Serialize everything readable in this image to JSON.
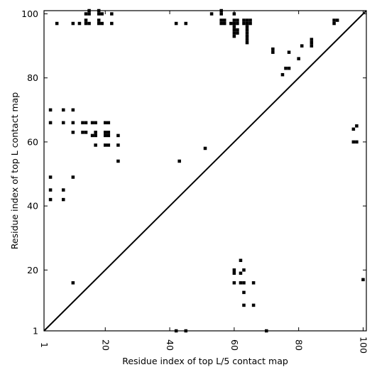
{
  "chart_data": {
    "type": "scatter",
    "xlabel": "Residue index of top L/5 contact map",
    "ylabel": "Residue index of top L contact map",
    "xlim": [
      1,
      101
    ],
    "ylim": [
      1,
      101
    ],
    "x_ticks": [
      1,
      20,
      40,
      60,
      80,
      100
    ],
    "y_ticks": [
      1,
      20,
      40,
      60,
      80,
      100
    ],
    "x_tick_labels": [
      "1",
      "20",
      "40",
      "60",
      "80",
      "100"
    ],
    "y_tick_labels": [
      "1",
      "20",
      "40",
      "60",
      "80",
      "100"
    ],
    "diagonal": true,
    "grid": false,
    "marker": "square",
    "marker_color": "#000000",
    "upper_series_name": "",
    "lower_series_name": "",
    "upper_points": [
      [
        5,
        97
      ],
      [
        10,
        97
      ],
      [
        12,
        97
      ],
      [
        14,
        97
      ],
      [
        15,
        97
      ],
      [
        18,
        97
      ],
      [
        19,
        97
      ],
      [
        22,
        97
      ],
      [
        42,
        97
      ],
      [
        45,
        97
      ],
      [
        14,
        98
      ],
      [
        18,
        98
      ],
      [
        14,
        100
      ],
      [
        15,
        100
      ],
      [
        15,
        101
      ],
      [
        18,
        101
      ],
      [
        18,
        100
      ],
      [
        19,
        100
      ],
      [
        22,
        100
      ],
      [
        53,
        100
      ],
      [
        56,
        100
      ],
      [
        56,
        101
      ],
      [
        60,
        100
      ],
      [
        56,
        98
      ],
      [
        57,
        98
      ],
      [
        56,
        97
      ],
      [
        57,
        97
      ],
      [
        59,
        97
      ],
      [
        60,
        97
      ],
      [
        61,
        97
      ],
      [
        60,
        98
      ],
      [
        61,
        98
      ],
      [
        60,
        96
      ],
      [
        60,
        95
      ],
      [
        61,
        95
      ],
      [
        60,
        94
      ],
      [
        61,
        94
      ],
      [
        60,
        93
      ],
      [
        63,
        98
      ],
      [
        64,
        98
      ],
      [
        65,
        98
      ],
      [
        63,
        97
      ],
      [
        64,
        97
      ],
      [
        65,
        97
      ],
      [
        64,
        96
      ],
      [
        64,
        95
      ],
      [
        64,
        94
      ],
      [
        64,
        93
      ],
      [
        64,
        92
      ],
      [
        64,
        91
      ],
      [
        91,
        98
      ],
      [
        92,
        98
      ],
      [
        91,
        97
      ],
      [
        84,
        92
      ],
      [
        84,
        91
      ],
      [
        84,
        90
      ],
      [
        81,
        90
      ],
      [
        72,
        89
      ],
      [
        72,
        88
      ],
      [
        77,
        88
      ],
      [
        80,
        86
      ],
      [
        76,
        83
      ],
      [
        77,
        83
      ],
      [
        75,
        81
      ],
      [
        3,
        70
      ],
      [
        7,
        70
      ],
      [
        10,
        70
      ],
      [
        3,
        66
      ],
      [
        7,
        66
      ],
      [
        10,
        66
      ],
      [
        13,
        66
      ],
      [
        14,
        66
      ],
      [
        16,
        66
      ],
      [
        17,
        66
      ],
      [
        20,
        66
      ],
      [
        21,
        66
      ],
      [
        10,
        63
      ],
      [
        13,
        63
      ],
      [
        14,
        63
      ],
      [
        17,
        63
      ],
      [
        20,
        63
      ],
      [
        21,
        63
      ],
      [
        16,
        62
      ],
      [
        17,
        62
      ],
      [
        20,
        62
      ],
      [
        21,
        62
      ],
      [
        24,
        62
      ],
      [
        17,
        59
      ],
      [
        20,
        59
      ],
      [
        21,
        59
      ],
      [
        24,
        59
      ],
      [
        51,
        58
      ],
      [
        24,
        54
      ],
      [
        43,
        54
      ],
      [
        3,
        49
      ],
      [
        10,
        49
      ],
      [
        3,
        45
      ],
      [
        7,
        45
      ],
      [
        3,
        42
      ],
      [
        7,
        42
      ]
    ],
    "lower_points": [
      [
        42,
        1
      ],
      [
        45,
        1
      ],
      [
        70,
        1
      ],
      [
        63,
        9
      ],
      [
        66,
        9
      ],
      [
        63,
        13
      ],
      [
        60,
        16
      ],
      [
        62,
        16
      ],
      [
        63,
        16
      ],
      [
        66,
        16
      ],
      [
        10,
        16
      ],
      [
        60,
        19
      ],
      [
        60,
        20
      ],
      [
        62,
        19
      ],
      [
        63,
        20
      ],
      [
        62,
        23
      ],
      [
        100,
        17
      ],
      [
        97,
        64
      ],
      [
        98,
        65
      ],
      [
        97,
        60
      ],
      [
        98,
        60
      ]
    ]
  }
}
